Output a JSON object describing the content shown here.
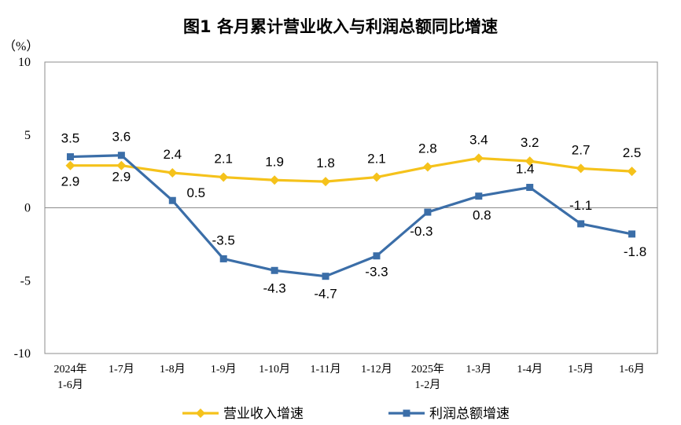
{
  "chart_data": {
    "type": "line",
    "title": "图1  各月累计营业收入与利润总额同比增速",
    "ylabel": "（%）",
    "xlabel": "",
    "ylim": [
      -10,
      10
    ],
    "yticks": [
      10,
      5,
      0,
      -5,
      -10
    ],
    "grid": false,
    "legend_position": "bottom",
    "categories": [
      [
        "2024年",
        "1-6月"
      ],
      [
        "1-7月"
      ],
      [
        "1-8月"
      ],
      [
        "1-9月"
      ],
      [
        "1-10月"
      ],
      [
        "1-11月"
      ],
      [
        "1-12月"
      ],
      [
        "2025年",
        "1-2月"
      ],
      [
        "1-3月"
      ],
      [
        "1-4月"
      ],
      [
        "1-5月"
      ],
      [
        "1-6月"
      ]
    ],
    "series": [
      {
        "name": "营业收入增速",
        "color": "#f5c21b",
        "marker": "diamond",
        "values": [
          2.9,
          2.9,
          2.4,
          2.1,
          1.9,
          1.8,
          2.1,
          2.8,
          3.4,
          3.2,
          2.7,
          2.5
        ],
        "labels": [
          "2.9",
          "2.9",
          "2.4",
          "2.1",
          "1.9",
          "1.8",
          "2.1",
          "2.8",
          "3.4",
          "3.2",
          "2.7",
          "2.5"
        ]
      },
      {
        "name": "利润总额增速",
        "color": "#3b6ea8",
        "marker": "square",
        "values": [
          3.5,
          3.6,
          0.5,
          -3.5,
          -4.3,
          -4.7,
          -3.3,
          -0.3,
          0.8,
          1.4,
          -1.1,
          -1.8
        ],
        "labels": [
          "3.5",
          "3.6",
          "0.5",
          "-3.5",
          "-4.3",
          "-4.7",
          "-3.3",
          "-0.3",
          "0.8",
          "1.4",
          "-1.1",
          "-1.8"
        ]
      }
    ]
  }
}
